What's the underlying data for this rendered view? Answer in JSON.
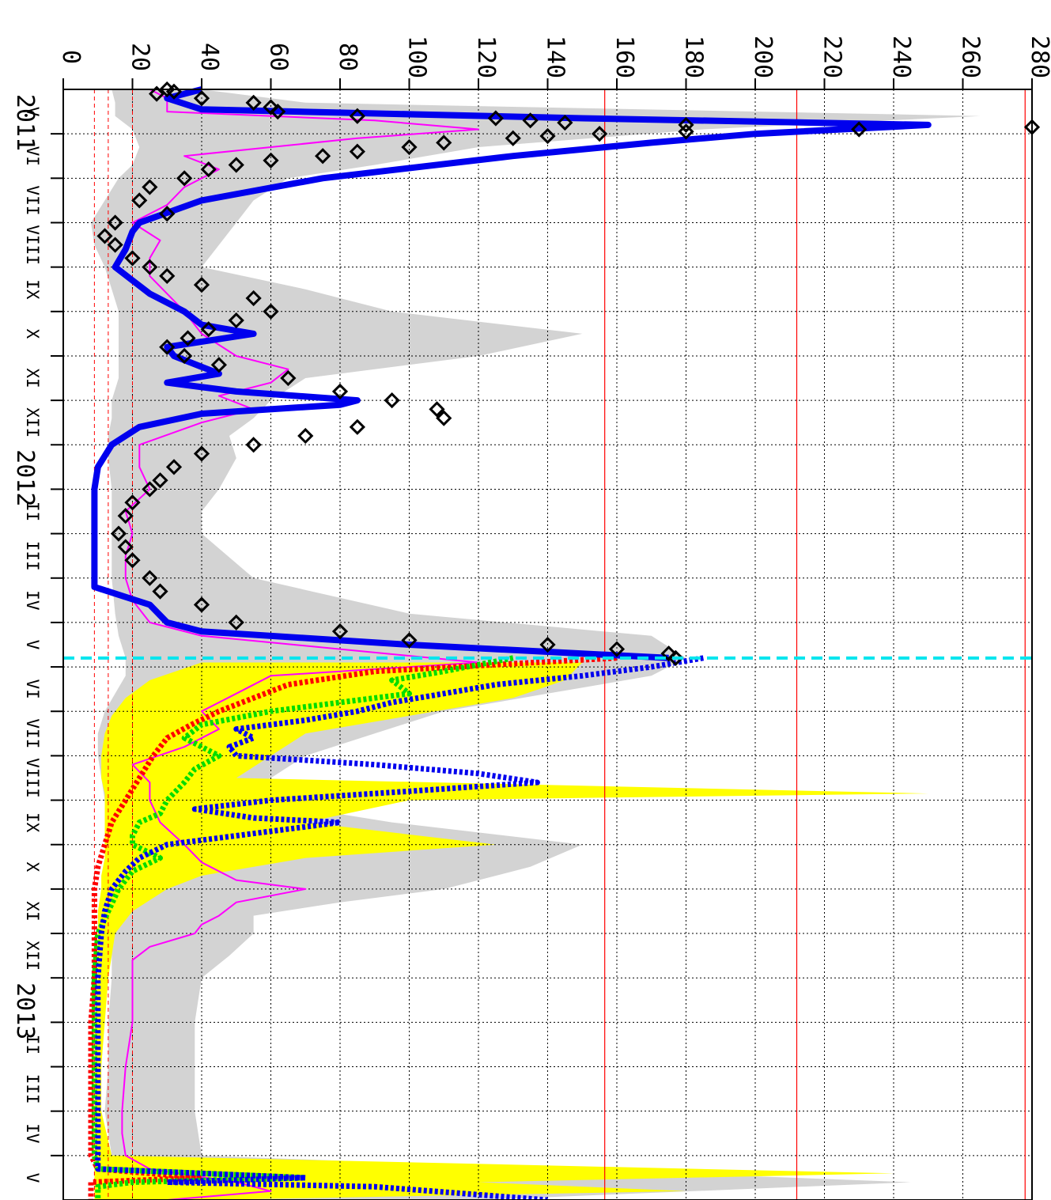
{
  "chart_data": {
    "type": "line",
    "orientation": "rotated 90° clockwise (time runs down the page, values run left→right)",
    "title": "",
    "xlabel": "",
    "ylabel": "",
    "ylim": [
      0,
      280
    ],
    "y_ticks": [
      "0",
      "20",
      "40",
      "60",
      "80",
      "100",
      "120",
      "140",
      "160",
      "180",
      "200",
      "220",
      "240",
      "260",
      "280"
    ],
    "time_range_months": [
      0,
      25
    ],
    "year_labels": [
      {
        "label": "2011",
        "month": 0
      },
      {
        "label": "2012",
        "month": 8
      },
      {
        "label": "2013",
        "month": 20
      }
    ],
    "month_labels": [
      {
        "label": "V",
        "month": 0.5
      },
      {
        "label": "VI",
        "month": 1.5
      },
      {
        "label": "VII",
        "month": 2.5
      },
      {
        "label": "VIII",
        "month": 3.5
      },
      {
        "label": "IX",
        "month": 4.5
      },
      {
        "label": "X",
        "month": 5.5
      },
      {
        "label": "XI",
        "month": 6.5
      },
      {
        "label": "XII",
        "month": 7.5
      },
      {
        "label": "II",
        "month": 9.5
      },
      {
        "label": "III",
        "month": 10.5
      },
      {
        "label": "IV",
        "month": 11.5
      },
      {
        "label": "V",
        "month": 12.5
      },
      {
        "label": "VI",
        "month": 13.5
      },
      {
        "label": "VII",
        "month": 14.5
      },
      {
        "label": "VIII",
        "month": 15.5
      },
      {
        "label": "IX",
        "month": 16.5
      },
      {
        "label": "X",
        "month": 17.5
      },
      {
        "label": "XI",
        "month": 18.5
      },
      {
        "label": "XII",
        "month": 19.5
      },
      {
        "label": "II",
        "month": 21.5
      },
      {
        "label": "III",
        "month": 22.5
      },
      {
        "label": "IV",
        "month": 23.5
      },
      {
        "label": "V",
        "month": 24.5
      }
    ],
    "grid": true,
    "forecast_start_month": 12.8,
    "reference_lines": {
      "solid": [
        156.5,
        212,
        278
      ],
      "dashed": [
        9,
        13,
        20
      ]
    },
    "colors": {
      "grid": "#000000",
      "reference_line": "#ff0000",
      "forecast_marker": "#00e5ee",
      "observed_fit": "#0000ee",
      "model_pink": "#ff00ff",
      "observed_points": "#000000",
      "band_gray": "#d3d3d3",
      "band_yellow": "#ffff00",
      "forecast_red": "#ff0000",
      "forecast_green": "#00dd00",
      "forecast_blue": "#0000ee"
    },
    "series": [
      {
        "style": "band-gray",
        "x": [
          0,
          0.3,
          0.6,
          0.9,
          1.3,
          1.7,
          2,
          2.5,
          3,
          3.5,
          4,
          4.5,
          5,
          5.5,
          6,
          6.5,
          7,
          7.4,
          7.8,
          8.3,
          9,
          9.5,
          10,
          11,
          11.8,
          12.3,
          12.8,
          13.2,
          13.6,
          14,
          14.5,
          15,
          15.5,
          16,
          16.5,
          17,
          17.5,
          18,
          18.3,
          18.6,
          19,
          19.5,
          20,
          21,
          22,
          23,
          24,
          24.6,
          25
        ],
        "low": [
          14,
          15,
          15,
          20,
          22,
          20,
          16,
          12,
          8,
          9,
          12,
          14,
          16,
          16,
          16,
          16,
          14,
          14,
          13,
          13,
          14,
          14,
          14,
          14,
          15,
          16,
          18,
          18,
          15,
          12,
          10,
          10,
          11,
          12,
          12,
          13,
          14,
          14,
          14,
          14,
          14,
          14,
          14,
          13,
          13,
          12,
          14,
          14,
          14
        ],
        "high": [
          40,
          70,
          265,
          185,
          120,
          90,
          65,
          55,
          50,
          45,
          40,
          70,
          95,
          150,
          120,
          70,
          60,
          55,
          48,
          50,
          45,
          40,
          40,
          55,
          100,
          170,
          180,
          170,
          140,
          110,
          90,
          70,
          60,
          55,
          95,
          150,
          135,
          110,
          80,
          55,
          55,
          48,
          40,
          38,
          38,
          38,
          40,
          245,
          120
        ]
      },
      {
        "style": "band-yellow",
        "x": [
          12.9,
          13.3,
          13.7,
          14.1,
          14.5,
          15,
          15.5,
          15.85,
          16,
          16.5,
          17,
          17.3,
          17.7,
          18,
          18.5,
          19,
          20,
          21,
          22,
          23,
          24,
          24.4,
          24.6,
          24.8,
          25
        ],
        "low": [
          40,
          25,
          18,
          14,
          12,
          11,
          11,
          12,
          12,
          12,
          12,
          12,
          11,
          11,
          10,
          10,
          10,
          9,
          9,
          9,
          9,
          9,
          9,
          9,
          9
        ],
        "high": [
          150,
          145,
          130,
          100,
          70,
          60,
          50,
          250,
          100,
          70,
          125,
          70,
          40,
          30,
          20,
          15,
          13,
          12,
          11,
          11,
          14,
          240,
          120,
          180,
          40
        ]
      },
      {
        "name": "",
        "style": "line-blue",
        "x": [
          0,
          0.2,
          0.45,
          0.65,
          0.8,
          1,
          1.2,
          1.5,
          2,
          2.5,
          3,
          3.2,
          3.6,
          4,
          4.3,
          4.6,
          5,
          5.3,
          5.5,
          5.8,
          6,
          6.4,
          6.6,
          6.8,
          7,
          7.1,
          7.3,
          7.6,
          8,
          8.5,
          9,
          9.5,
          10,
          10.5,
          11,
          11.2,
          11.6,
          12,
          12.2,
          12.5,
          12.8
        ],
        "y": [
          40,
          30,
          40,
          150,
          250,
          200,
          170,
          130,
          75,
          40,
          22,
          20,
          18,
          15,
          20,
          25,
          35,
          40,
          55,
          30,
          32,
          45,
          30,
          50,
          85,
          80,
          40,
          22,
          14,
          10,
          9,
          9,
          9,
          9,
          9,
          9,
          25,
          30,
          40,
          100,
          175
        ]
      },
      {
        "name": "",
        "style": "line-pink",
        "x": [
          0,
          0.2,
          0.5,
          0.7,
          0.9,
          1.1,
          1.3,
          1.5,
          1.8,
          2.2,
          2.6,
          3,
          3.4,
          3.8,
          4.2,
          4.6,
          5,
          5.5,
          6,
          6.3,
          6.6,
          6.9,
          7.2,
          7.5,
          8,
          8.5,
          9,
          9.5,
          10,
          10.5,
          11,
          11.5,
          12,
          12.3,
          12.6,
          12.9,
          13.2,
          13.6,
          14,
          14.4,
          14.8,
          15.2,
          15.6,
          16,
          16.5,
          17,
          17.4,
          17.8,
          18,
          18.3,
          18.6,
          18.8,
          19,
          19.3,
          19.6,
          20,
          20.5,
          21,
          22,
          23,
          23.5,
          24,
          24.3,
          24.6,
          24.8,
          25
        ],
        "y": [
          25,
          30,
          30,
          90,
          120,
          85,
          60,
          35,
          45,
          35,
          30,
          20,
          28,
          25,
          25,
          30,
          35,
          40,
          50,
          65,
          60,
          45,
          55,
          40,
          22,
          22,
          25,
          18,
          20,
          18,
          18,
          20,
          25,
          40,
          80,
          120,
          60,
          50,
          40,
          45,
          35,
          20,
          25,
          25,
          28,
          35,
          40,
          50,
          70,
          50,
          45,
          40,
          38,
          25,
          20,
          20,
          20,
          20,
          18,
          17,
          17,
          18,
          25,
          50,
          60,
          30
        ]
      },
      {
        "name": "",
        "style": "scatter",
        "x": [
          0,
          0.05,
          0.1,
          0.2,
          0.3,
          0.4,
          0.5,
          0.6,
          0.65,
          0.7,
          0.75,
          0.8,
          0.85,
          0.9,
          0.95,
          1,
          1.05,
          1.1,
          1.2,
          1.3,
          1.4,
          1.5,
          1.6,
          1.7,
          1.8,
          2,
          2.2,
          2.5,
          2.8,
          3,
          3.3,
          3.5,
          3.8,
          4,
          4.2,
          4.4,
          4.7,
          5,
          5.2,
          5.4,
          5.6,
          5.8,
          6,
          6.2,
          6.5,
          6.8,
          7,
          7.2,
          7.4,
          7.6,
          7.8,
          8,
          8.2,
          8.5,
          8.8,
          9,
          9.3,
          9.6,
          10,
          10.3,
          10.6,
          11,
          11.3,
          11.6,
          12,
          12.2,
          12.4,
          12.5,
          12.6,
          12.7,
          12.8
        ],
        "y": [
          30,
          32,
          27,
          40,
          55,
          60,
          62,
          85,
          125,
          135,
          145,
          180,
          280,
          230,
          180,
          155,
          140,
          130,
          110,
          100,
          85,
          75,
          60,
          50,
          42,
          35,
          25,
          22,
          30,
          15,
          12,
          15,
          20,
          25,
          30,
          40,
          55,
          60,
          50,
          42,
          36,
          30,
          35,
          45,
          65,
          80,
          95,
          108,
          110,
          85,
          70,
          55,
          40,
          32,
          28,
          25,
          20,
          18,
          16,
          18,
          20,
          25,
          28,
          40,
          50,
          80,
          100,
          140,
          160,
          175,
          177
        ]
      },
      {
        "name": "",
        "style": "forecast-red",
        "x": [
          12.8,
          13.1,
          13.4,
          13.7,
          14,
          14.3,
          14.6,
          15,
          15.5,
          16,
          16.5,
          17,
          17.5,
          18,
          18.5,
          19,
          20,
          21,
          22,
          23,
          24,
          24.3,
          24.5,
          24.6,
          24.7,
          25
        ],
        "y": [
          160,
          90,
          65,
          55,
          45,
          37,
          30,
          26,
          22,
          18,
          14,
          12,
          10,
          9,
          9,
          9,
          9,
          8,
          8,
          8,
          8,
          10,
          40,
          8,
          8,
          8
        ]
      },
      {
        "name": "",
        "style": "forecast-green",
        "x": [
          12.8,
          13.1,
          13.3,
          13.6,
          14,
          14.3,
          14.6,
          15,
          15.3,
          15.6,
          16,
          16.3,
          16.5,
          16.8,
          17,
          17.3,
          17.6,
          18,
          18.5,
          19,
          20,
          21,
          22,
          23,
          24,
          24.3,
          24.5,
          24.6,
          24.7,
          25
        ],
        "y": [
          130,
          110,
          95,
          100,
          60,
          40,
          35,
          45,
          38,
          35,
          30,
          28,
          22,
          20,
          20,
          28,
          20,
          16,
          13,
          10,
          9,
          9,
          9,
          9,
          9,
          10,
          70,
          20,
          10,
          10
        ]
      },
      {
        "name": "",
        "style": "forecast-blue",
        "x": [
          12.8,
          13,
          13.2,
          13.4,
          13.6,
          13.8,
          14,
          14.2,
          14.4,
          14.6,
          14.8,
          15,
          15.2,
          15.4,
          15.6,
          15.8,
          16,
          16.2,
          16.4,
          16.5,
          16.8,
          17,
          17.3,
          17.6,
          18,
          18.5,
          19,
          20,
          21,
          22,
          23,
          24,
          24.3,
          24.5,
          24.6,
          24.7,
          25
        ],
        "y": [
          185,
          170,
          150,
          125,
          110,
          95,
          85,
          70,
          50,
          55,
          48,
          50,
          90,
          120,
          137,
          100,
          60,
          38,
          55,
          80,
          50,
          30,
          22,
          18,
          14,
          12,
          11,
          10,
          10,
          10,
          10,
          10,
          10,
          70,
          30,
          90,
          140
        ]
      }
    ]
  }
}
